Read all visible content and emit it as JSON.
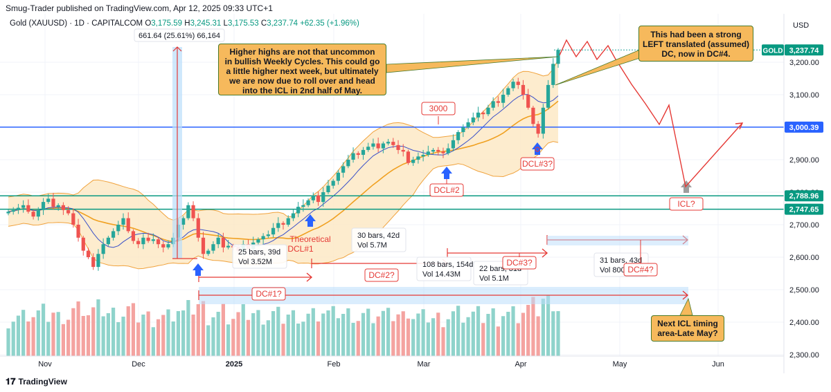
{
  "header": {
    "published": "Smug-Trader published on TradingView.com, Apr 12, 2025 09:33 UTC+1",
    "symbol": "Gold (XAUUSD) · 1D · CAPITALCOM",
    "o_label": "O",
    "o": "3,175.59",
    "h_label": "H",
    "h": "3,245.31",
    "l_label": "L",
    "l": "3,175.53",
    "c_label": "C",
    "c": "3,237.74",
    "change": "+62.35 (+1.96%)"
  },
  "currency": "USD",
  "footer": {
    "brand": "TradingView"
  },
  "colors": {
    "up": "#26a69a",
    "down": "#ef5350",
    "vol_up": "#8fd3cb",
    "vol_down": "#f4a3a0",
    "band": "#fde7c2",
    "band_line": "#f0a23c",
    "ma_fast": "#3a50c8",
    "ma_slow": "#f0a020",
    "blue_line": "#2962ff",
    "green_line": "#089981",
    "red_annot": "#e53935",
    "note_fill": "#f6b95c"
  },
  "chart_data": {
    "type": "candlestick",
    "x_ticks": [
      "Nov",
      "Dec",
      "2025",
      "Feb",
      "Mar",
      "Apr",
      "May",
      "Jun"
    ],
    "y_ticks": [
      "3,200.00",
      "3,100.00",
      "3,000.00",
      "2,900.00",
      "2,800.00",
      "2,700.00",
      "2,600.00",
      "2,500.00",
      "2,400.00",
      "2,300.00"
    ],
    "ylim": [
      2280,
      3300
    ],
    "close_series": [
      2740,
      2745,
      2752,
      2760,
      2740,
      2725,
      2745,
      2770,
      2780,
      2755,
      2760,
      2745,
      2735,
      2700,
      2660,
      2620,
      2600,
      2570,
      2610,
      2640,
      2660,
      2680,
      2700,
      2720,
      2680,
      2650,
      2640,
      2660,
      2650,
      2655,
      2640,
      2630,
      2640,
      2660,
      2700,
      2720,
      2760,
      2720,
      2660,
      2610,
      2620,
      2640,
      2660,
      2630,
      2635,
      2630,
      2620,
      2640,
      2625,
      2645,
      2655,
      2665,
      2670,
      2690,
      2705,
      2700,
      2720,
      2735,
      2755,
      2760,
      2775,
      2790,
      2770,
      2800,
      2820,
      2835,
      2860,
      2880,
      2900,
      2920,
      2915,
      2930,
      2940,
      2950,
      2935,
      2950,
      2955,
      2945,
      2930,
      2925,
      2890,
      2900,
      2910,
      2915,
      2925,
      2930,
      2925,
      2920,
      2935,
      2960,
      2985,
      3000,
      3015,
      3030,
      3045,
      3040,
      3060,
      3080,
      3075,
      3100,
      3120,
      3140,
      3130,
      3100,
      3060,
      3010,
      2980,
      3060,
      3130,
      3195,
      3237.74
    ],
    "price_labels": [
      {
        "text": "GOLD",
        "value": "3,237.74"
      },
      {
        "value": "3,000.39"
      },
      {
        "value": "2,788.96"
      },
      {
        "value": "2,747.65"
      }
    ],
    "measure_label": "661.64 (25.61%) 66,164",
    "range_notes": [
      {
        "a": "25 bars, 39d",
        "b": "Vol 3.52M"
      },
      {
        "a": "30 bars, 42d",
        "b": "Vol 5.7M"
      },
      {
        "a": "108 bars, 154d",
        "b": "Vol 14.43M"
      },
      {
        "a": "22 bars, 31d",
        "b": "Vol 5.1M"
      },
      {
        "a": "31 bars, 43d",
        "b": "Vol 800.4K"
      }
    ],
    "cycle_labels": [
      "DC#1?",
      "DC#2?",
      "DC#3?",
      "DC#4?",
      "ICL?",
      "DCL#2",
      "DCL#3?",
      "3000"
    ],
    "theoretical": [
      "Theoretical",
      "DCL#1"
    ],
    "notes": {
      "n1": [
        "Higher highs are not that uncommon",
        "in bullish Weekly Cycles. This could go",
        "a little higher next week, but ultimately",
        "we are now due to roll over and head",
        "into the ICL in 2nd half of May."
      ],
      "n2": [
        "This had been a strong",
        "LEFT translated (assumed)",
        "DC, now in DC#4."
      ],
      "n3": [
        "Next ICL timing",
        "area-Late May?"
      ]
    }
  }
}
